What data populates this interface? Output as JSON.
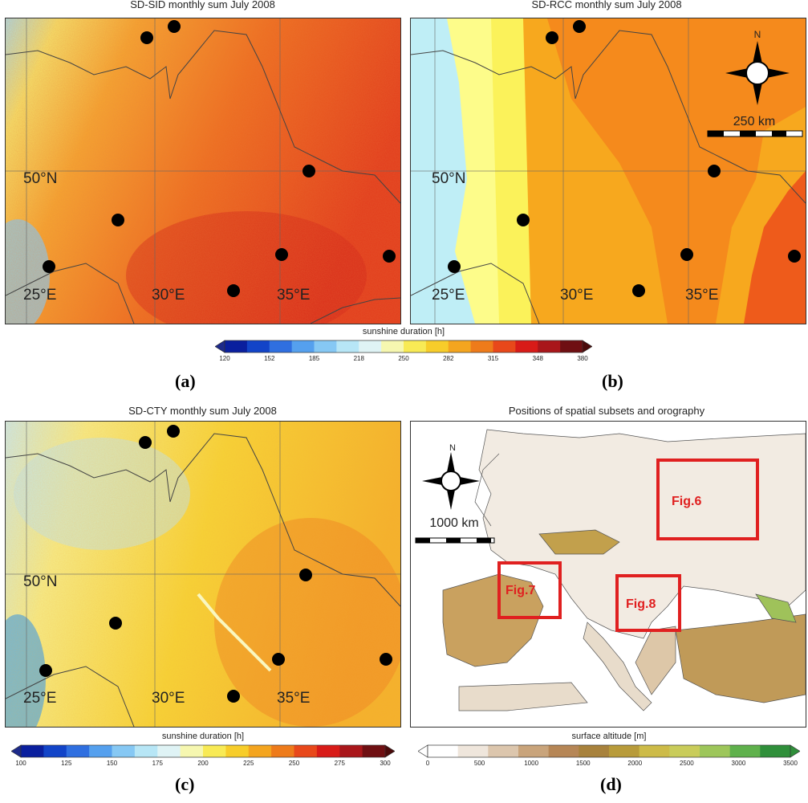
{
  "panels": {
    "a": {
      "title": "SD-SID monthly sum July 2008",
      "label": "(a)"
    },
    "b": {
      "title": "SD-RCC monthly sum July 2008",
      "label": "(b)"
    },
    "c": {
      "title": "SD-CTY monthly sum July 2008",
      "label": "(c)"
    },
    "d": {
      "title": "Positions of spatial subsets and orography",
      "label": "(d)"
    }
  },
  "map_labels": {
    "lat50": "50°N",
    "lon25": "25°E",
    "lon30": "30°E",
    "lon35": "35°E"
  },
  "scale_b": {
    "text": "250 km",
    "north": "N"
  },
  "scale_d": {
    "text": "1000 km",
    "north": "N"
  },
  "subset_boxes": {
    "fig6": "Fig.6",
    "fig7": "Fig.7",
    "fig8": "Fig.8"
  },
  "colorbar_ab": {
    "title": "sunshine duration [h]",
    "ticks": [
      "120",
      "152",
      "185",
      "218",
      "250",
      "282",
      "315",
      "348",
      "380"
    ],
    "colors": [
      "#0a1f9e",
      "#1244c8",
      "#2f6fe0",
      "#55a0ee",
      "#86c8f4",
      "#b7e6f6",
      "#dff3f5",
      "#f6f7b0",
      "#f8ea55",
      "#f7cd2a",
      "#f4a51f",
      "#ee7b1a",
      "#e8481a",
      "#d81b18",
      "#a9161a",
      "#6f0f12"
    ],
    "left_arrow": "#1d2a8a",
    "right_arrow": "#4a0a0a"
  },
  "colorbar_c": {
    "title": "sunshine duration [h]",
    "ticks": [
      "100",
      "125",
      "150",
      "175",
      "200",
      "225",
      "250",
      "275",
      "300"
    ],
    "colors": [
      "#0a1f9e",
      "#1244c8",
      "#2f6fe0",
      "#55a0ee",
      "#86c8f4",
      "#b7e6f6",
      "#dff3f5",
      "#f6f7b0",
      "#f8ea55",
      "#f7cd2a",
      "#f4a51f",
      "#ee7b1a",
      "#e8481a",
      "#d81b18",
      "#a9161a",
      "#6f0f12"
    ],
    "left_arrow": "#1d2a8a",
    "right_arrow": "#4a0a0a"
  },
  "colorbar_d": {
    "title": "surface altitude [m]",
    "ticks": [
      "0",
      "500",
      "1000",
      "1500",
      "2000",
      "2500",
      "3000",
      "3500"
    ],
    "colors": [
      "#ffffff",
      "#efe6dc",
      "#dcc6ad",
      "#c9a47b",
      "#b68656",
      "#a8823c",
      "#b89b3a",
      "#cdbb48",
      "#c9cc5a",
      "#9dc65a",
      "#5fb14c",
      "#2f8f3a"
    ],
    "left_arrow": "#ffffff",
    "right_arrow": "#2f8f3a"
  }
}
